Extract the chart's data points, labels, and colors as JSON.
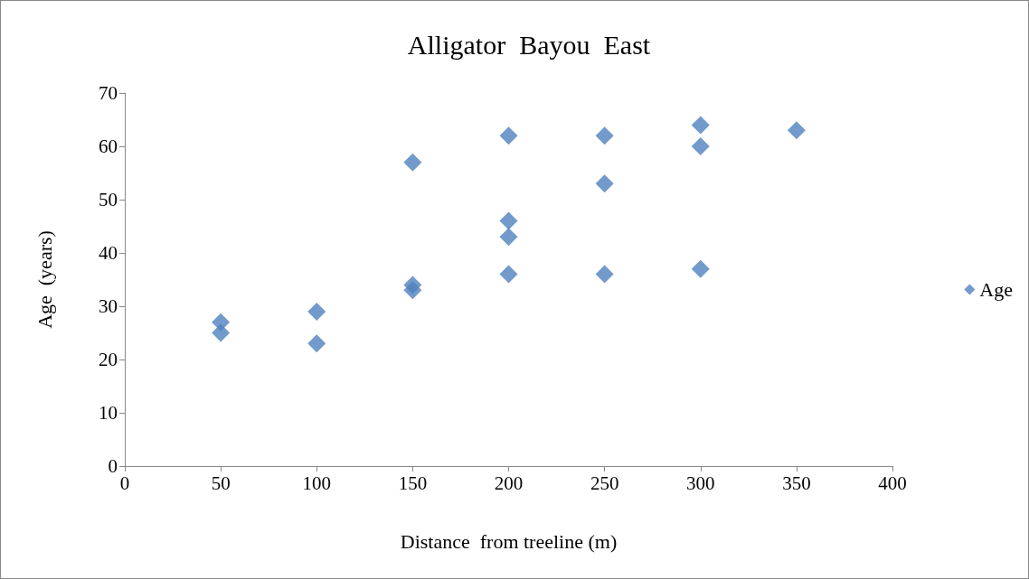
{
  "chart_data": {
    "type": "scatter",
    "title": "Alligator  Bayou  East",
    "xlabel": "Distance  from treeline (m)",
    "ylabel": "Age  (years)",
    "x": [
      50,
      50,
      100,
      100,
      150,
      150,
      150,
      200,
      200,
      200,
      200,
      250,
      250,
      250,
      300,
      300,
      300,
      350
    ],
    "series": [
      {
        "name": "Age",
        "color": "#4f81bd",
        "values": [
          27,
          25,
          29,
          23,
          57,
          33,
          34,
          62,
          46,
          43,
          36,
          62,
          53,
          36,
          64,
          60,
          37,
          63
        ]
      }
    ],
    "xlim": [
      0,
      400
    ],
    "xticks": [
      0,
      50,
      100,
      150,
      200,
      250,
      300,
      350,
      400
    ],
    "ylim": [
      0,
      70
    ],
    "yticks": [
      0,
      10,
      20,
      30,
      40,
      50,
      60,
      70
    ],
    "grid": false,
    "legend": "right",
    "marker": "diamond"
  }
}
